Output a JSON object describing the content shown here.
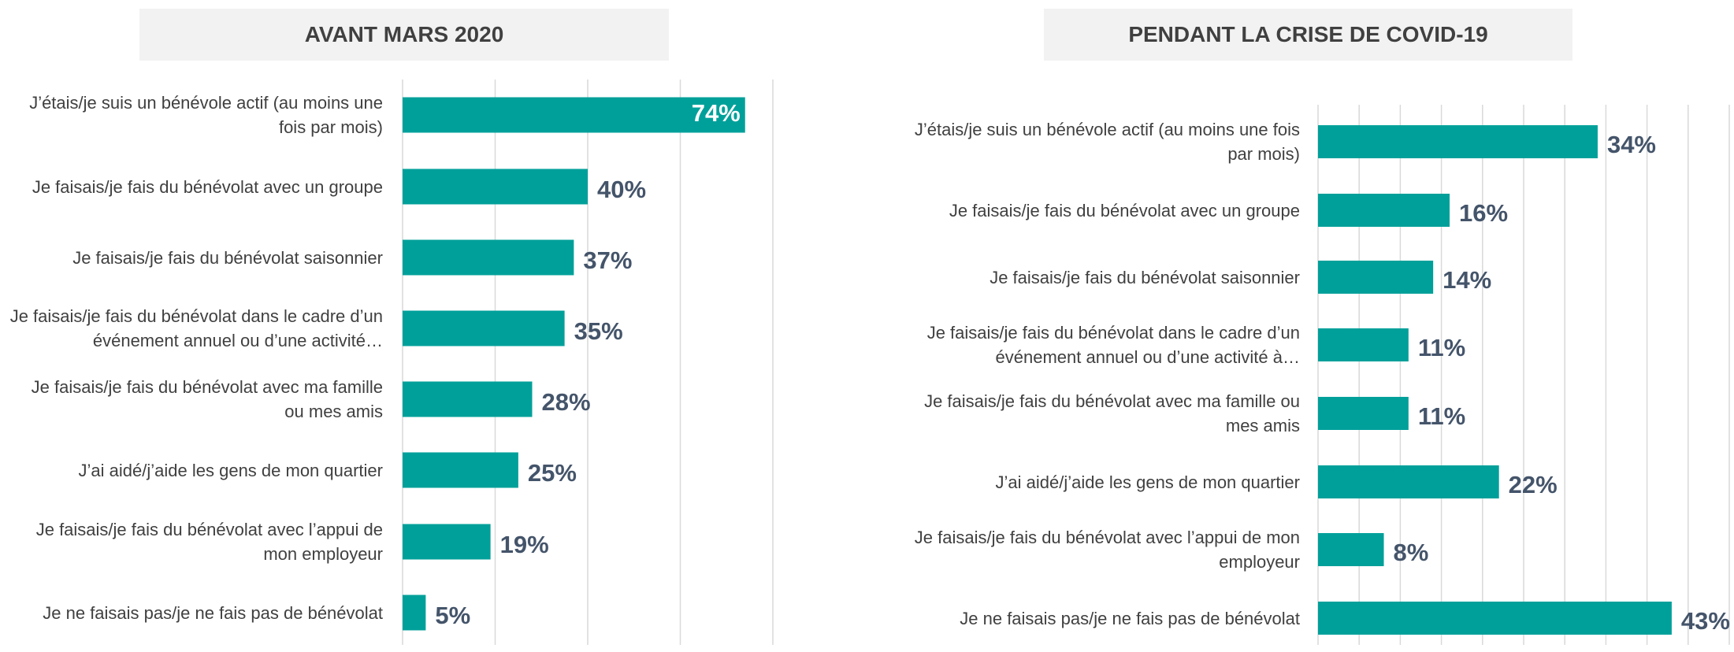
{
  "chart_data": [
    {
      "type": "barh",
      "title": "AVANT MARS 2020",
      "categories": [
        "J’étais/je suis un bénévole actif (au moins une fois par mois)",
        "Je faisais/je fais du bénévolat avec un groupe",
        "Je faisais/je fais du bénévolat saisonnier",
        "Je faisais/je fais du bénévolat dans le cadre d’un événement annuel ou d’une activité…",
        "Je faisais/je fais du bénévolat avec ma famille ou mes amis",
        "J’ai aidé/j’aide les gens de mon quartier",
        "Je faisais/je fais du bénévolat avec l’appui de mon employeur",
        "Je ne faisais pas/je ne fais pas de bénévolat"
      ],
      "values": [
        74,
        40,
        37,
        35,
        28,
        25,
        19,
        5
      ],
      "value_labels": [
        "74%",
        "40%",
        "37%",
        "35%",
        "28%",
        "25%",
        "19%",
        "5%"
      ],
      "color": "#00a09a",
      "xlim": [
        0,
        80
      ],
      "xticks": [
        0,
        20,
        40,
        60,
        80
      ],
      "grid": true
    },
    {
      "type": "barh",
      "title": "PENDANT LA CRISE DE COVID-19",
      "categories": [
        "J’étais/je suis un bénévole actif (au moins une fois par mois)",
        "Je faisais/je fais du bénévolat avec un groupe",
        "Je faisais/je fais du bénévolat saisonnier",
        "Je faisais/je fais du bénévolat dans le cadre d’un événement annuel ou d’une activité à…",
        "Je faisais/je fais du bénévolat avec ma famille ou mes amis",
        "J’ai aidé/j’aide les gens de mon quartier",
        "Je faisais/je fais du bénévolat avec l’appui de mon employeur",
        "Je ne faisais pas/je ne fais pas de bénévolat"
      ],
      "values": [
        34,
        16,
        14,
        11,
        11,
        22,
        8,
        43
      ],
      "value_labels": [
        "34%",
        "16%",
        "14%",
        "11%",
        "11%",
        "22%",
        "8%",
        "43%"
      ],
      "color": "#00a09a",
      "xlim": [
        0,
        50
      ],
      "xticks": [
        0,
        5,
        10,
        15,
        20,
        25,
        30,
        35,
        40,
        45,
        50
      ],
      "grid": true
    }
  ]
}
